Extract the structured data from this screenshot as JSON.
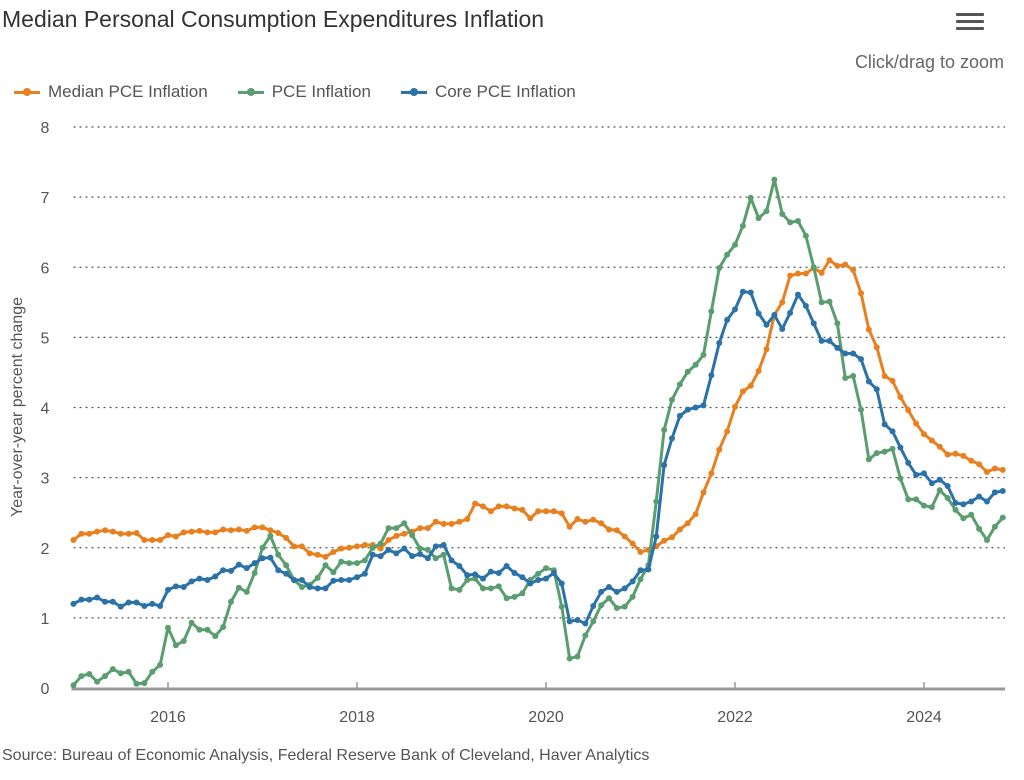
{
  "header": {
    "title": "Median Personal Consumption Expenditures Inflation",
    "menu_icon": "hamburger-menu-icon",
    "zoom_hint": "Click/drag to zoom"
  },
  "footer": {
    "source": "Source: Bureau of Economic Analysis, Federal Reserve Bank of Cleveland, Haver Analytics"
  },
  "chart_data": {
    "type": "line",
    "title": "Median Personal Consumption Expenditures Inflation",
    "xlabel": "",
    "ylabel": "Year-over-year percent change",
    "ylim": [
      0,
      8
    ],
    "yticks": [
      "0",
      "1",
      "2",
      "3",
      "4",
      "5",
      "6",
      "7",
      "8"
    ],
    "xlim": [
      "2015-01",
      "2024-11"
    ],
    "xticks": [
      "2016",
      "2018",
      "2020",
      "2022",
      "2024"
    ],
    "grid": "horizontal dotted",
    "legend": "top-left",
    "frequency": "monthly",
    "x": [
      "2015-01",
      "2015-02",
      "2015-03",
      "2015-04",
      "2015-05",
      "2015-06",
      "2015-07",
      "2015-08",
      "2015-09",
      "2015-10",
      "2015-11",
      "2015-12",
      "2016-01",
      "2016-02",
      "2016-03",
      "2016-04",
      "2016-05",
      "2016-06",
      "2016-07",
      "2016-08",
      "2016-09",
      "2016-10",
      "2016-11",
      "2016-12",
      "2017-01",
      "2017-02",
      "2017-03",
      "2017-04",
      "2017-05",
      "2017-06",
      "2017-07",
      "2017-08",
      "2017-09",
      "2017-10",
      "2017-11",
      "2017-12",
      "2018-01",
      "2018-02",
      "2018-03",
      "2018-04",
      "2018-05",
      "2018-06",
      "2018-07",
      "2018-08",
      "2018-09",
      "2018-10",
      "2018-11",
      "2018-12",
      "2019-01",
      "2019-02",
      "2019-03",
      "2019-04",
      "2019-05",
      "2019-06",
      "2019-07",
      "2019-08",
      "2019-09",
      "2019-10",
      "2019-11",
      "2019-12",
      "2020-01",
      "2020-02",
      "2020-03",
      "2020-04",
      "2020-05",
      "2020-06",
      "2020-07",
      "2020-08",
      "2020-09",
      "2020-10",
      "2020-11",
      "2020-12",
      "2021-01",
      "2021-02",
      "2021-03",
      "2021-04",
      "2021-05",
      "2021-06",
      "2021-07",
      "2021-08",
      "2021-09",
      "2021-10",
      "2021-11",
      "2021-12",
      "2022-01",
      "2022-02",
      "2022-03",
      "2022-04",
      "2022-05",
      "2022-06",
      "2022-07",
      "2022-08",
      "2022-09",
      "2022-10",
      "2022-11",
      "2022-12",
      "2023-01",
      "2023-02",
      "2023-03",
      "2023-04",
      "2023-05",
      "2023-06",
      "2023-07",
      "2023-08",
      "2023-09",
      "2023-10",
      "2023-11",
      "2023-12",
      "2024-01",
      "2024-02",
      "2024-03",
      "2024-04",
      "2024-05",
      "2024-06",
      "2024-07",
      "2024-08",
      "2024-09",
      "2024-10",
      "2024-11"
    ],
    "series": [
      {
        "name": "Median PCE Inflation",
        "color": "#e8801f",
        "values": [
          2.11,
          2.2,
          2.2,
          2.23,
          2.25,
          2.23,
          2.2,
          2.2,
          2.21,
          2.11,
          2.11,
          2.11,
          2.18,
          2.16,
          2.22,
          2.23,
          2.24,
          2.22,
          2.22,
          2.26,
          2.25,
          2.26,
          2.24,
          2.29,
          2.29,
          2.25,
          2.21,
          2.14,
          2.02,
          2.02,
          1.92,
          1.9,
          1.87,
          1.94,
          1.99,
          2.0,
          2.02,
          2.04,
          2.04,
          1.99,
          2.11,
          2.17,
          2.2,
          2.23,
          2.28,
          2.28,
          2.37,
          2.34,
          2.34,
          2.37,
          2.41,
          2.63,
          2.59,
          2.52,
          2.59,
          2.59,
          2.56,
          2.54,
          2.42,
          2.52,
          2.52,
          2.52,
          2.49,
          2.3,
          2.41,
          2.37,
          2.4,
          2.35,
          2.26,
          2.25,
          2.16,
          2.06,
          1.94,
          1.97,
          2.02,
          2.1,
          2.15,
          2.26,
          2.35,
          2.48,
          2.79,
          3.06,
          3.4,
          3.66,
          4.01,
          4.23,
          4.31,
          4.52,
          4.83,
          5.32,
          5.5,
          5.88,
          5.91,
          5.91,
          5.99,
          5.92,
          6.1,
          6.02,
          6.04,
          5.96,
          5.63,
          5.11,
          4.86,
          4.45,
          4.38,
          4.15,
          3.96,
          3.77,
          3.62,
          3.53,
          3.44,
          3.33,
          3.34,
          3.31,
          3.24,
          3.19,
          3.08,
          3.13,
          3.11
        ]
      },
      {
        "name": "PCE Inflation",
        "color": "#5a9e6f",
        "values": [
          0.04,
          0.17,
          0.2,
          0.09,
          0.17,
          0.27,
          0.21,
          0.23,
          0.06,
          0.07,
          0.23,
          0.33,
          0.86,
          0.61,
          0.67,
          0.93,
          0.83,
          0.83,
          0.74,
          0.87,
          1.23,
          1.43,
          1.37,
          1.64,
          2.0,
          2.17,
          1.9,
          1.75,
          1.54,
          1.44,
          1.47,
          1.57,
          1.75,
          1.65,
          1.8,
          1.78,
          1.78,
          1.82,
          2.0,
          2.06,
          2.28,
          2.28,
          2.35,
          2.18,
          1.99,
          1.97,
          1.85,
          1.9,
          1.42,
          1.4,
          1.54,
          1.56,
          1.42,
          1.42,
          1.45,
          1.28,
          1.3,
          1.35,
          1.54,
          1.63,
          1.71,
          1.68,
          1.16,
          0.42,
          0.45,
          0.75,
          0.95,
          1.18,
          1.28,
          1.14,
          1.16,
          1.3,
          1.55,
          1.75,
          2.66,
          3.68,
          4.11,
          4.33,
          4.51,
          4.61,
          4.75,
          5.37,
          5.99,
          6.18,
          6.32,
          6.59,
          6.99,
          6.7,
          6.8,
          7.25,
          6.76,
          6.64,
          6.66,
          6.45,
          6.0,
          5.5,
          5.51,
          5.2,
          4.42,
          4.45,
          3.97,
          3.26,
          3.35,
          3.37,
          3.41,
          2.99,
          2.69,
          2.69,
          2.6,
          2.58,
          2.82,
          2.71,
          2.54,
          2.42,
          2.47,
          2.27,
          2.11,
          2.3,
          2.43
        ]
      },
      {
        "name": "Core PCE Inflation",
        "color": "#2a72a8",
        "values": [
          1.2,
          1.26,
          1.26,
          1.29,
          1.23,
          1.23,
          1.16,
          1.22,
          1.22,
          1.17,
          1.2,
          1.17,
          1.4,
          1.45,
          1.44,
          1.52,
          1.56,
          1.54,
          1.59,
          1.68,
          1.67,
          1.76,
          1.71,
          1.78,
          1.85,
          1.86,
          1.68,
          1.63,
          1.54,
          1.54,
          1.44,
          1.42,
          1.42,
          1.53,
          1.54,
          1.54,
          1.58,
          1.63,
          1.9,
          1.88,
          1.97,
          1.92,
          1.99,
          1.88,
          1.91,
          1.85,
          2.02,
          2.04,
          1.82,
          1.74,
          1.61,
          1.62,
          1.56,
          1.66,
          1.64,
          1.74,
          1.64,
          1.58,
          1.49,
          1.54,
          1.56,
          1.64,
          1.49,
          0.95,
          0.97,
          0.92,
          1.17,
          1.37,
          1.44,
          1.37,
          1.42,
          1.52,
          1.68,
          1.69,
          2.16,
          3.18,
          3.56,
          3.88,
          3.97,
          4.0,
          4.03,
          4.46,
          4.92,
          5.25,
          5.4,
          5.65,
          5.64,
          5.34,
          5.18,
          5.32,
          5.12,
          5.35,
          5.61,
          5.45,
          5.2,
          4.95,
          4.95,
          4.85,
          4.77,
          4.77,
          4.69,
          4.37,
          4.26,
          3.76,
          3.66,
          3.43,
          3.21,
          3.04,
          3.06,
          2.92,
          2.97,
          2.88,
          2.64,
          2.62,
          2.66,
          2.73,
          2.66,
          2.79,
          2.81
        ]
      }
    ]
  }
}
